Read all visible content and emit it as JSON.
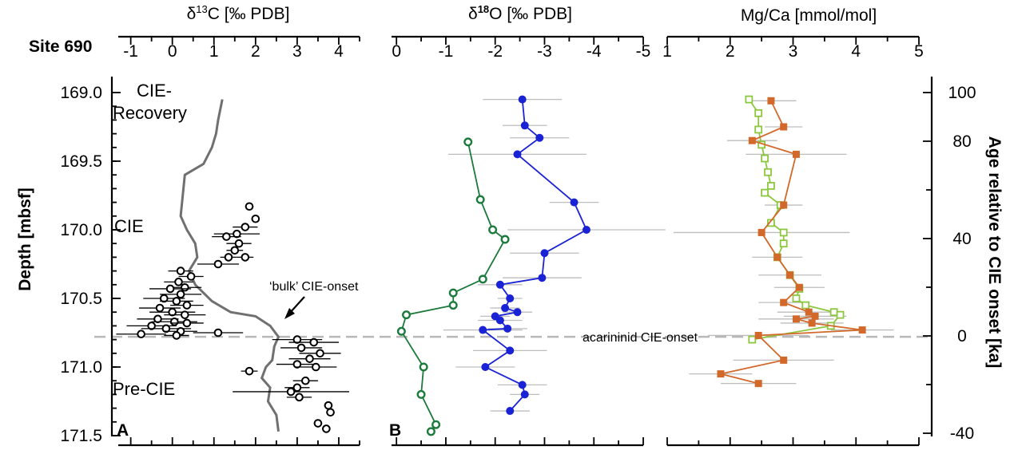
{
  "chart_data": {
    "type": "scatter",
    "site_label": "Site 690",
    "y_axis": {
      "label": "Depth [mbsf]",
      "range": [
        168.55,
        171.5
      ],
      "ticks": [
        "169.0",
        "169.5",
        "170.0",
        "170.5",
        "171.0",
        "171.5"
      ]
    },
    "right_axis": {
      "label": "Age relative to CIE onset [ka]",
      "ticks": [
        "100",
        "80",
        "40",
        "0",
        "-40"
      ]
    },
    "zone_labels": [
      "CIE-",
      "Recovery",
      "CIE",
      "Pre-CIE"
    ],
    "reference_line": {
      "depth": 170.78,
      "label": "acarininid CIE-onset"
    },
    "annotation": {
      "text": "‘bulk’ CIE-onset"
    },
    "panels": [
      {
        "id": "A",
        "letter": "A",
        "xlabel": "δ13C [‰ PDB]",
        "xlim": [
          -1.3,
          4.5
        ],
        "ticks": [
          "-1",
          "0",
          "1",
          "2",
          "3",
          "4"
        ],
        "bulk_series": [
          [
            1.2,
            169.05
          ],
          [
            1.1,
            169.2
          ],
          [
            1.05,
            169.3
          ],
          [
            0.95,
            169.4
          ],
          [
            0.75,
            169.52
          ],
          [
            0.3,
            169.6
          ],
          [
            0.25,
            169.75
          ],
          [
            0.2,
            169.9
          ],
          [
            0.35,
            170.0
          ],
          [
            0.55,
            170.1
          ],
          [
            0.6,
            170.2
          ],
          [
            0.4,
            170.3
          ],
          [
            0.55,
            170.4
          ],
          [
            0.95,
            170.52
          ],
          [
            1.4,
            170.6
          ],
          [
            2.0,
            170.63
          ],
          [
            2.35,
            170.7
          ],
          [
            2.55,
            170.78
          ],
          [
            2.45,
            170.85
          ],
          [
            2.4,
            170.95
          ],
          [
            2.25,
            171.0
          ],
          [
            2.15,
            171.08
          ],
          [
            2.35,
            171.15
          ],
          [
            2.3,
            171.25
          ],
          [
            2.5,
            171.35
          ],
          [
            2.55,
            171.47
          ]
        ],
        "points": [
          {
            "x": 1.85,
            "y": 169.83,
            "err": 0.1
          },
          {
            "x": 2.0,
            "y": 169.92,
            "err": 0.1
          },
          {
            "x": 1.75,
            "y": 169.98,
            "err": 0.3
          },
          {
            "x": 1.55,
            "y": 170.03,
            "err": 0.55
          },
          {
            "x": 1.3,
            "y": 170.05,
            "err": 0.35
          },
          {
            "x": 1.6,
            "y": 170.1,
            "err": 0.3
          },
          {
            "x": 1.5,
            "y": 170.15,
            "err": 0.2
          },
          {
            "x": 1.35,
            "y": 170.2,
            "err": 0.2
          },
          {
            "x": 1.75,
            "y": 170.2,
            "err": 0.2
          },
          {
            "x": 1.1,
            "y": 170.25,
            "err": 0.5
          },
          {
            "x": 0.2,
            "y": 170.3,
            "err": 0.3
          },
          {
            "x": 0.45,
            "y": 170.34,
            "err": 0.3
          },
          {
            "x": 0.15,
            "y": 170.38,
            "err": 0.35
          },
          {
            "x": 0.3,
            "y": 170.42,
            "err": 0.4
          },
          {
            "x": -0.05,
            "y": 170.43,
            "err": 0.5
          },
          {
            "x": 0.2,
            "y": 170.47,
            "err": 0.5
          },
          {
            "x": -0.2,
            "y": 170.5,
            "err": 0.5
          },
          {
            "x": 0.1,
            "y": 170.52,
            "err": 0.4
          },
          {
            "x": 0.35,
            "y": 170.55,
            "err": 0.4
          },
          {
            "x": -0.3,
            "y": 170.57,
            "err": 0.5
          },
          {
            "x": 0.0,
            "y": 170.6,
            "err": 0.55
          },
          {
            "x": 0.3,
            "y": 170.62,
            "err": 0.5
          },
          {
            "x": -0.35,
            "y": 170.65,
            "err": 0.5
          },
          {
            "x": 0.05,
            "y": 170.67,
            "err": 0.55
          },
          {
            "x": 0.35,
            "y": 170.68,
            "err": 0.4
          },
          {
            "x": -0.5,
            "y": 170.7,
            "err": 0.6
          },
          {
            "x": -0.15,
            "y": 170.72,
            "err": 0.6
          },
          {
            "x": 0.2,
            "y": 170.74,
            "err": 0.4
          },
          {
            "x": -0.75,
            "y": 170.76,
            "err": 0.6
          },
          {
            "x": 0.1,
            "y": 170.77,
            "err": 0.3
          },
          {
            "x": 1.1,
            "y": 170.75,
            "err": 0.6
          },
          {
            "x": 3.0,
            "y": 170.8,
            "err": 0.6
          },
          {
            "x": 3.4,
            "y": 170.82,
            "err": 0.6
          },
          {
            "x": 3.1,
            "y": 170.86,
            "err": 0.5
          },
          {
            "x": 3.55,
            "y": 170.9,
            "err": 0.5
          },
          {
            "x": 3.3,
            "y": 170.94,
            "err": 0.5
          },
          {
            "x": 3.0,
            "y": 170.98,
            "err": 0.5
          },
          {
            "x": 3.45,
            "y": 171.0,
            "err": 0.5
          },
          {
            "x": 1.85,
            "y": 171.03,
            "err": 0.2
          },
          {
            "x": 3.2,
            "y": 171.1,
            "err": 0.3
          },
          {
            "x": 3.0,
            "y": 171.15,
            "err": 0.3
          },
          {
            "x": 2.85,
            "y": 171.18,
            "err": 1.4
          },
          {
            "x": 3.05,
            "y": 171.22,
            "err": 0.3
          },
          {
            "x": 3.75,
            "y": 171.28,
            "err": 0.1
          },
          {
            "x": 3.8,
            "y": 171.33,
            "err": 0.1
          },
          {
            "x": 3.5,
            "y": 171.41,
            "err": 0.1
          },
          {
            "x": 3.7,
            "y": 171.45,
            "err": 0.1
          }
        ]
      },
      {
        "id": "B",
        "letter": "B",
        "xlabel": "δ18O [‰ PDB]",
        "xlim": [
          0.1,
          -5.0
        ],
        "ticks": [
          "0",
          "-1",
          "-2",
          "-3",
          "-4",
          "-5"
        ],
        "series": [
          {
            "color": "#1c7a3c",
            "marker": "open-circle",
            "points": [
              {
                "x": -1.45,
                "y": 169.36,
                "err": 0
              },
              {
                "x": -1.7,
                "y": 169.78,
                "err": 0
              },
              {
                "x": -1.95,
                "y": 170.0,
                "err": 0
              },
              {
                "x": -2.2,
                "y": 170.07,
                "err": 0
              },
              {
                "x": -1.75,
                "y": 170.36,
                "err": 0
              },
              {
                "x": -1.15,
                "y": 170.46,
                "err": 0
              },
              {
                "x": -1.15,
                "y": 170.55,
                "err": 0
              },
              {
                "x": -0.2,
                "y": 170.62,
                "err": 0
              },
              {
                "x": -0.1,
                "y": 170.74,
                "err": 0
              },
              {
                "x": -0.55,
                "y": 171.0,
                "err": 0
              },
              {
                "x": -0.5,
                "y": 171.2,
                "err": 0
              },
              {
                "x": -0.8,
                "y": 171.42,
                "err": 0
              },
              {
                "x": -0.7,
                "y": 171.47,
                "err": 0
              }
            ]
          },
          {
            "color": "#1a22d6",
            "marker": "filled-circle",
            "points": [
              {
                "x": -2.55,
                "y": 169.05,
                "err": 0.8
              },
              {
                "x": -2.6,
                "y": 169.24,
                "err": 0.45
              },
              {
                "x": -2.9,
                "y": 169.33,
                "err": 0.6
              },
              {
                "x": -2.45,
                "y": 169.45,
                "err": 1.4
              },
              {
                "x": -3.6,
                "y": 169.8,
                "err": 0.5
              },
              {
                "x": -3.85,
                "y": 170.0,
                "err": 1.6
              },
              {
                "x": -3.0,
                "y": 170.17,
                "err": 0.7
              },
              {
                "x": -2.95,
                "y": 170.35,
                "err": 0.8
              },
              {
                "x": -2.1,
                "y": 170.4,
                "err": 0.45
              },
              {
                "x": -2.3,
                "y": 170.5,
                "err": 0.25
              },
              {
                "x": -2.2,
                "y": 170.57,
                "err": 0.3
              },
              {
                "x": -2.45,
                "y": 170.6,
                "err": 0.3
              },
              {
                "x": -2.0,
                "y": 170.63,
                "err": 0.3
              },
              {
                "x": -2.1,
                "y": 170.66,
                "err": 0.45
              },
              {
                "x": -2.25,
                "y": 170.72,
                "err": 0.4
              },
              {
                "x": -1.75,
                "y": 170.73,
                "err": 0.8
              },
              {
                "x": -2.3,
                "y": 170.88,
                "err": 0.75
              },
              {
                "x": -1.8,
                "y": 171.0,
                "err": 0.6
              },
              {
                "x": -2.55,
                "y": 171.13,
                "err": 0.5
              },
              {
                "x": -2.6,
                "y": 171.2,
                "err": 0.3
              },
              {
                "x": -2.3,
                "y": 171.32,
                "err": 0.4
              }
            ]
          }
        ]
      },
      {
        "id": "C",
        "xlabel": "Mg/Ca [mmol/mol]",
        "xlim": [
          1,
          5
        ],
        "ticks": [
          "1",
          "2",
          "3",
          "4",
          "5"
        ],
        "series": [
          {
            "color": "#8dc63f",
            "marker": "open-square",
            "points": [
              {
                "x": 2.3,
                "y": 169.05,
                "err": 0
              },
              {
                "x": 2.45,
                "y": 169.15,
                "err": 0
              },
              {
                "x": 2.45,
                "y": 169.27,
                "err": 0
              },
              {
                "x": 2.5,
                "y": 169.38,
                "err": 0
              },
              {
                "x": 2.55,
                "y": 169.48,
                "err": 0
              },
              {
                "x": 2.6,
                "y": 169.58,
                "err": 0
              },
              {
                "x": 2.65,
                "y": 169.68,
                "err": 0
              },
              {
                "x": 2.55,
                "y": 169.73,
                "err": 0
              },
              {
                "x": 2.8,
                "y": 169.82,
                "err": 0
              },
              {
                "x": 2.65,
                "y": 169.95,
                "err": 0
              },
              {
                "x": 2.85,
                "y": 170.02,
                "err": 0
              },
              {
                "x": 2.85,
                "y": 170.1,
                "err": 0
              },
              {
                "x": 2.75,
                "y": 170.2,
                "err": 0
              },
              {
                "x": 2.95,
                "y": 170.33,
                "err": 0
              },
              {
                "x": 3.1,
                "y": 170.43,
                "err": 0
              },
              {
                "x": 3.05,
                "y": 170.5,
                "err": 0
              },
              {
                "x": 3.2,
                "y": 170.55,
                "err": 0
              },
              {
                "x": 3.65,
                "y": 170.6,
                "err": 0
              },
              {
                "x": 3.75,
                "y": 170.62,
                "err": 0
              },
              {
                "x": 3.6,
                "y": 170.7,
                "err": 0
              },
              {
                "x": 2.35,
                "y": 170.8,
                "err": 0
              }
            ]
          },
          {
            "color": "#d2692b",
            "marker": "filled-square",
            "points": [
              {
                "x": 2.65,
                "y": 169.06,
                "err": 0.4
              },
              {
                "x": 2.85,
                "y": 169.25,
                "err": 0.3
              },
              {
                "x": 2.35,
                "y": 169.35,
                "err": 0.4
              },
              {
                "x": 3.05,
                "y": 169.45,
                "err": 0.8
              },
              {
                "x": 2.85,
                "y": 169.82,
                "err": 0.3
              },
              {
                "x": 2.5,
                "y": 170.02,
                "err": 1.4
              },
              {
                "x": 2.75,
                "y": 170.2,
                "err": 0.4
              },
              {
                "x": 2.95,
                "y": 170.33,
                "err": 0.5
              },
              {
                "x": 3.1,
                "y": 170.42,
                "err": 0.4
              },
              {
                "x": 2.85,
                "y": 170.53,
                "err": 0.4
              },
              {
                "x": 3.25,
                "y": 170.6,
                "err": 0.5
              },
              {
                "x": 3.35,
                "y": 170.63,
                "err": 0.5
              },
              {
                "x": 3.05,
                "y": 170.65,
                "err": 0.6
              },
              {
                "x": 3.3,
                "y": 170.68,
                "err": 0.5
              },
              {
                "x": 4.1,
                "y": 170.73,
                "err": 0.5
              },
              {
                "x": 2.45,
                "y": 170.77,
                "err": 0.8
              },
              {
                "x": 2.85,
                "y": 170.95,
                "err": 0.8
              },
              {
                "x": 1.85,
                "y": 171.05,
                "err": 0.5
              },
              {
                "x": 2.45,
                "y": 171.12,
                "err": 0.6
              }
            ]
          }
        ]
      }
    ]
  }
}
